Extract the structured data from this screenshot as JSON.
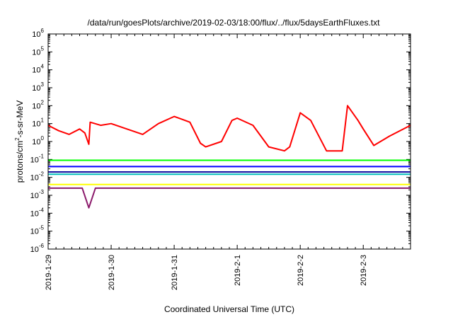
{
  "chart_data": {
    "type": "line",
    "title": "/data/run/goesPlots/archive/2019-02-03/18:00/flux/../flux/5daysEarthFluxes.txt",
    "xlabel": "Coordinated Universal Time (UTC)",
    "ylabel": {
      "pre": "protons/cm",
      "sup": "2",
      "post": "-s-sr-MeV"
    },
    "yscale": "log",
    "ylim": [
      "1e-6",
      "1e6"
    ],
    "y_ticks": [
      {
        "base": "10",
        "exp": "-6"
      },
      {
        "base": "10",
        "exp": "-5"
      },
      {
        "base": "10",
        "exp": "-4"
      },
      {
        "base": "10",
        "exp": "-3"
      },
      {
        "base": "10",
        "exp": "-2"
      },
      {
        "base": "10",
        "exp": "-1"
      },
      {
        "base": "10",
        "exp": "0"
      },
      {
        "base": "10",
        "exp": "1"
      },
      {
        "base": "10",
        "exp": "2"
      },
      {
        "base": "10",
        "exp": "3"
      },
      {
        "base": "10",
        "exp": "4"
      },
      {
        "base": "10",
        "exp": "5"
      },
      {
        "base": "10",
        "exp": "6"
      }
    ],
    "x_ticks": [
      "2019-1-29",
      "2019-1-30",
      "2019-1-31",
      "2019-2-1",
      "2019-2-2",
      "2019-2-3"
    ],
    "xlim": [
      "2019-01-29 00:00",
      "2019-02-03 18:00"
    ],
    "grid": false,
    "series": [
      {
        "color": "#ff0000",
        "x": [
          "2019-01-29 00:00",
          "2019-01-29 04:00",
          "2019-01-29 08:00",
          "2019-01-29 12:00",
          "2019-01-29 14:00",
          "2019-01-29 15:30",
          "2019-01-29 16:00",
          "2019-01-29 20:00",
          "2019-01-30 00:00",
          "2019-01-30 06:00",
          "2019-01-30 12:00",
          "2019-01-30 18:00",
          "2019-01-31 00:00",
          "2019-01-31 06:00",
          "2019-01-31 10:00",
          "2019-01-31 12:00",
          "2019-01-31 18:00",
          "2019-01-31 22:00",
          "2019-02-01 00:00",
          "2019-02-01 06:00",
          "2019-02-01 12:00",
          "2019-02-01 18:00",
          "2019-02-01 20:00",
          "2019-02-02 00:00",
          "2019-02-02 04:00",
          "2019-02-02 10:00",
          "2019-02-02 16:00",
          "2019-02-02 18:00",
          "2019-02-02 22:00",
          "2019-02-03 00:00",
          "2019-02-03 04:00",
          "2019-02-03 10:00",
          "2019-02-03 18:00"
        ],
        "y": [
          8,
          4,
          2.5,
          5,
          3,
          0.7,
          12,
          8,
          10,
          5,
          2.5,
          10,
          25,
          12,
          0.8,
          0.5,
          1,
          15,
          20,
          8,
          0.5,
          0.3,
          0.5,
          40,
          15,
          0.3,
          0.3,
          100,
          15,
          5,
          0.6,
          2,
          8
        ]
      },
      {
        "color": "#00ff00",
        "x": [
          "2019-01-29 00:00",
          "2019-02-03 18:00"
        ],
        "y": [
          0.09,
          0.09
        ]
      },
      {
        "color": "#0000ff",
        "x": [
          "2019-01-29 00:00",
          "2019-02-03 18:00"
        ],
        "y": [
          0.04,
          0.04
        ]
      },
      {
        "color": "#00bbbb",
        "x": [
          "2019-01-29 00:00",
          "2019-02-03 18:00"
        ],
        "y": [
          0.015,
          0.015
        ]
      },
      {
        "color": "#1010a0",
        "x": [
          "2019-01-29 00:00",
          "2019-02-03 18:00"
        ],
        "y": [
          0.02,
          0.02
        ]
      },
      {
        "color": "#ffff00",
        "x": [
          "2019-01-29 00:00",
          "2019-02-03 18:00"
        ],
        "y": [
          0.004,
          0.004
        ]
      },
      {
        "color": "#8b1a6b",
        "x": [
          "2019-01-29 00:00",
          "2019-01-29 13:00",
          "2019-01-29 15:30",
          "2019-01-29 18:00",
          "2019-01-30 19:00",
          "2019-01-31 00:00",
          "2019-02-03 18:00"
        ],
        "y": [
          0.0025,
          0.0025,
          0.0002,
          0.0025,
          0.0025,
          0.0025,
          0.0025
        ]
      }
    ]
  }
}
